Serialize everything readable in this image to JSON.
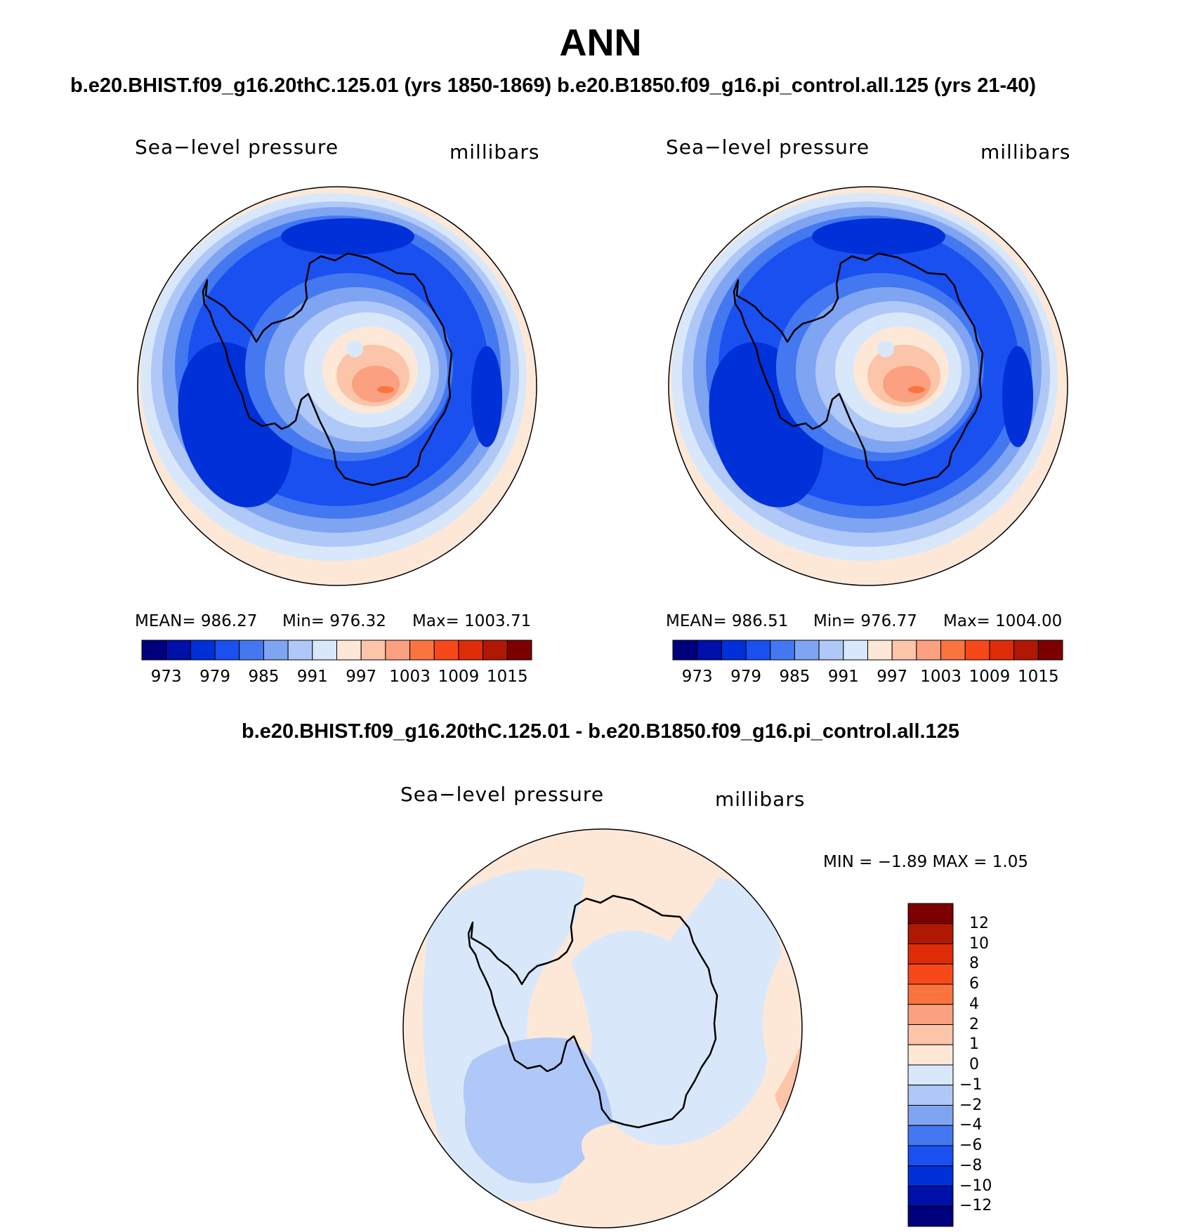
{
  "header": {
    "title": "ANN",
    "subtitle": "b.e20.BHIST.f09_g16.20thC.125.01 (yrs 1850-1869)  b.e20.B1850.f09_g16.pi_control.all.125 (yrs 21-40)"
  },
  "panels": [
    {
      "variable": "Sea−level  pressure",
      "units": "millibars",
      "stats": {
        "mean": "MEAN=  986.27",
        "min": "Min=  976.32",
        "max": "Max=  1003.71"
      },
      "colorbar": {
        "colors": [
          "#00007f",
          "#0010a8",
          "#0030d8",
          "#1a50f0",
          "#4478f0",
          "#7fa4f2",
          "#b0c8f8",
          "#d8e8fa",
          "#fde8d8",
          "#fcc4a8",
          "#fba080",
          "#fb7440",
          "#f64818",
          "#de2c08",
          "#b01804",
          "#7c0000"
        ],
        "labels": [
          "973",
          "979",
          "985",
          "991",
          "997",
          "1003",
          "1009",
          "1015"
        ]
      }
    },
    {
      "variable": "Sea−level  pressure",
      "units": "millibars",
      "stats": {
        "mean": "MEAN=  986.51",
        "min": "Min=  976.77",
        "max": "Max=  1004.00"
      },
      "colorbar": {
        "colors": [
          "#00007f",
          "#0010a8",
          "#0030d8",
          "#1a50f0",
          "#4478f0",
          "#7fa4f2",
          "#b0c8f8",
          "#d8e8fa",
          "#fde8d8",
          "#fcc4a8",
          "#fba080",
          "#fb7440",
          "#f64818",
          "#de2c08",
          "#b01804",
          "#7c0000"
        ],
        "labels": [
          "973",
          "979",
          "985",
          "991",
          "997",
          "1003",
          "1009",
          "1015"
        ]
      }
    }
  ],
  "difference": {
    "title": "b.e20.BHIST.f09_g16.20thC.125.01 - b.e20.B1850.f09_g16.pi_control.all.125",
    "variable": "Sea−level  pressure",
    "units": "millibars",
    "stats": "MIN =   −1.89  MAX =     1.05",
    "colorbar": {
      "colors_top_to_bottom": [
        "#7c0000",
        "#b01804",
        "#de2c08",
        "#f64818",
        "#fb7440",
        "#fba080",
        "#fcc4a8",
        "#fde8d8",
        "#d8e8fa",
        "#b0c8f8",
        "#7fa4f2",
        "#4478f0",
        "#1a50f0",
        "#0030d8",
        "#0010a8",
        "#00007f"
      ],
      "labels_top_to_bottom": [
        "12",
        "10",
        "8",
        "6",
        "4",
        "2",
        "1",
        "0",
        "−1",
        "−2",
        "−4",
        "−6",
        "−8",
        "−10",
        "−12"
      ]
    }
  }
}
